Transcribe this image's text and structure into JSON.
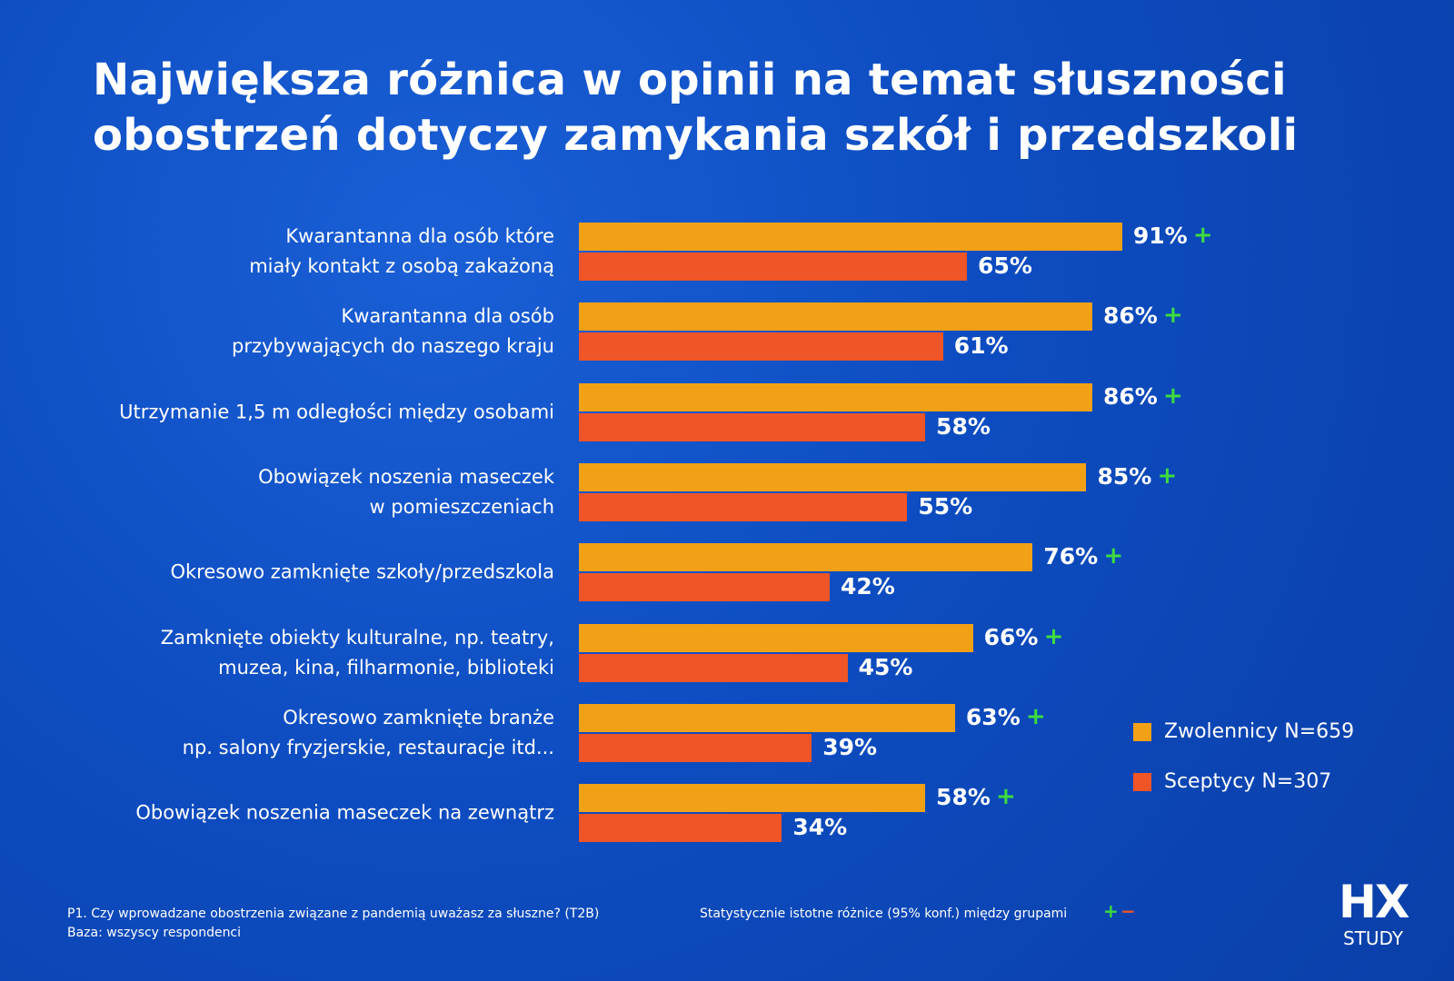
{
  "chart_data": {
    "type": "bar",
    "orientation": "horizontal",
    "title": "Największa różnica w opinii na temat słuszności\nobostrzeń dotyczy zamykania szkół i przedszkoli",
    "categories": [
      "Kwarantanna dla osób które\nmiały kontakt z osobą zakażoną",
      "Kwarantanna dla osób\nprzybywających do naszego kraju",
      "Utrzymanie 1,5 m odległości między osobami",
      "Obowiązek noszenia maseczek\nw pomieszczeniach",
      "Okresowo zamknięte szkoły/przedszkola",
      "Zamknięte obiekty kulturalne, np. teatry,\nmuzea, kina, filharmonie, biblioteki",
      "Okresowo zamknięte branże\nnp. salony fryzjerskie, restauracje itd...",
      "Obowiązek noszenia maseczek na zewnątrz"
    ],
    "series": [
      {
        "name": "Zwolennicy N=659",
        "color": "#f2a116",
        "values": [
          91,
          86,
          86,
          85,
          76,
          66,
          63,
          58
        ],
        "value_labels": [
          "91%",
          "86%",
          "86%",
          "85%",
          "76%",
          "66%",
          "63%",
          "58%"
        ],
        "significance": [
          "+",
          "+",
          "+",
          "+",
          "+",
          "+",
          "+",
          "+"
        ]
      },
      {
        "name": "Sceptycy N=307",
        "color": "#ef5526",
        "values": [
          65,
          61,
          58,
          55,
          42,
          45,
          39,
          34
        ],
        "value_labels": [
          "65%",
          "61%",
          "58%",
          "55%",
          "42%",
          "45%",
          "39%",
          "34%"
        ]
      }
    ],
    "footnote": [
      "P1. Czy wprowadzane obostrzenia związane z pandemią uważasz za słuszne? (T2B)",
      "Baza: wszyscy respondenci"
    ],
    "significance_note": "Statystycznie istotne różnice (95% konf.) między grupami",
    "significance_symbols": [
      "+",
      "−"
    ],
    "logo": [
      "HX",
      "STUDY"
    ]
  }
}
